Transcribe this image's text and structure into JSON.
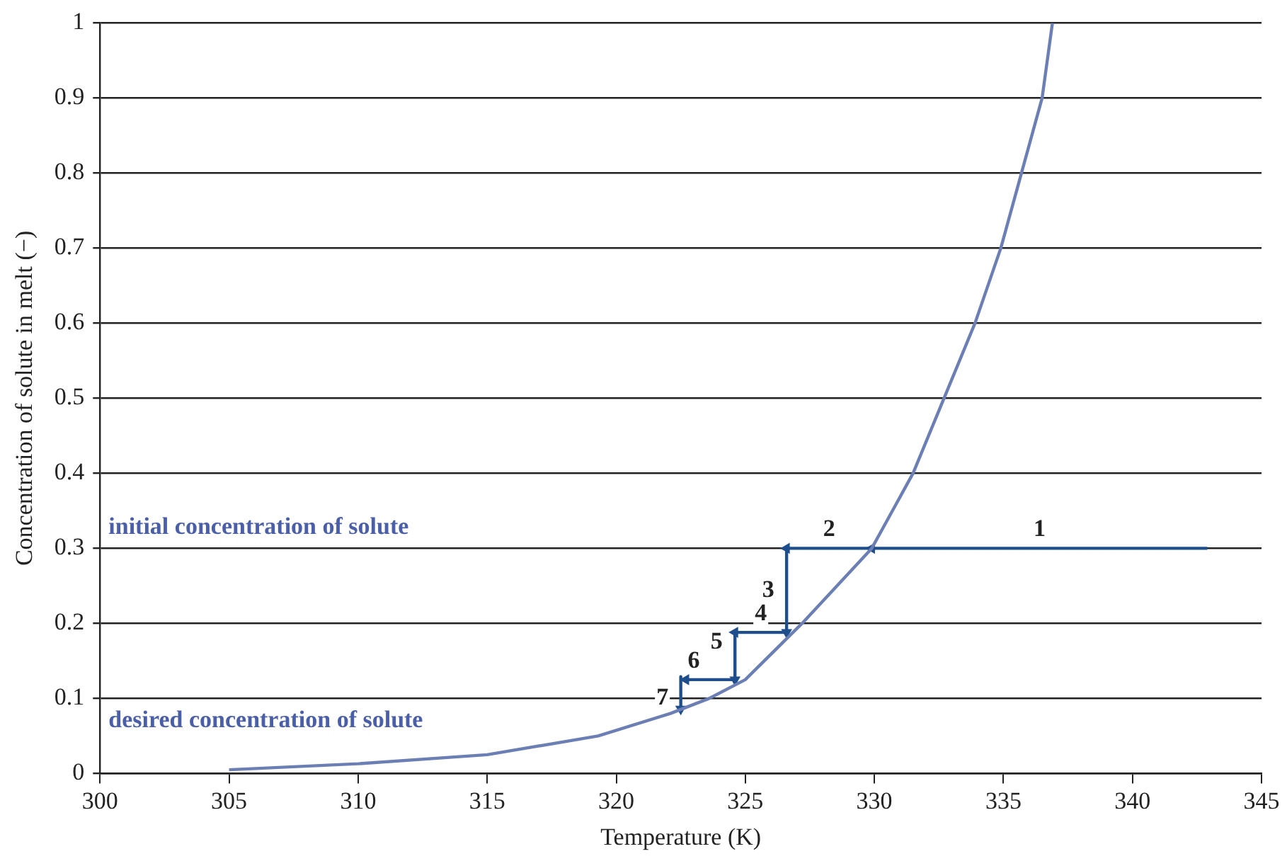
{
  "chart_data": {
    "type": "line",
    "xlabel": "Temperature (K)",
    "ylabel": "Concentration of solute in melt (−)",
    "xlim": [
      300,
      345
    ],
    "xticks": [
      300,
      305,
      310,
      315,
      320,
      325,
      330,
      335,
      340,
      345
    ],
    "ylim": [
      0,
      1
    ],
    "yticks": [
      0,
      0.1,
      0.2,
      0.3,
      0.4,
      0.5,
      0.6,
      0.7,
      0.8,
      0.9,
      1
    ],
    "grid": "y",
    "legend": false,
    "line_style": "solid",
    "series": [
      {
        "color": "#6b7fb5",
        "x": [
          305,
          310,
          315,
          319.3,
          322.1,
          323.6,
          325,
          327.2,
          329.9,
          331.5,
          332.7,
          333.9,
          334.9,
          335.7,
          336.5,
          336.9
        ],
        "values": [
          0.005,
          0.013,
          0.025,
          0.05,
          0.08,
          0.1,
          0.125,
          0.2,
          0.3,
          0.4,
          0.5,
          0.6,
          0.7,
          0.8,
          0.9,
          1
        ]
      },
      {
        "color": "#1f4e8c",
        "x": [
          342.9,
          329.9,
          326.6,
          326.6,
          324.6,
          324.6,
          322.7,
          null,
          322.5,
          322.5
        ],
        "values": [
          0.3,
          0.3,
          0.3,
          0.188,
          0.188,
          0.125,
          0.125,
          null,
          0.129,
          0.086
        ]
      }
    ],
    "annotations": [
      {
        "text": "1",
        "x": 336.4,
        "y": 0.3
      },
      {
        "text": "2",
        "x": 328.25,
        "y": 0.3
      },
      {
        "text": "3",
        "x": 326.6,
        "y": 0.244
      },
      {
        "text": "4",
        "x": 325.6,
        "y": 0.188
      },
      {
        "text": "5",
        "x": 324.6,
        "y": 0.175
      },
      {
        "text": "6",
        "x": 323,
        "y": 0.125
      },
      {
        "text": "7",
        "x": 322.5,
        "y": 0.1
      },
      "initial concentration of solute",
      "desired concentration of solute"
    ]
  }
}
